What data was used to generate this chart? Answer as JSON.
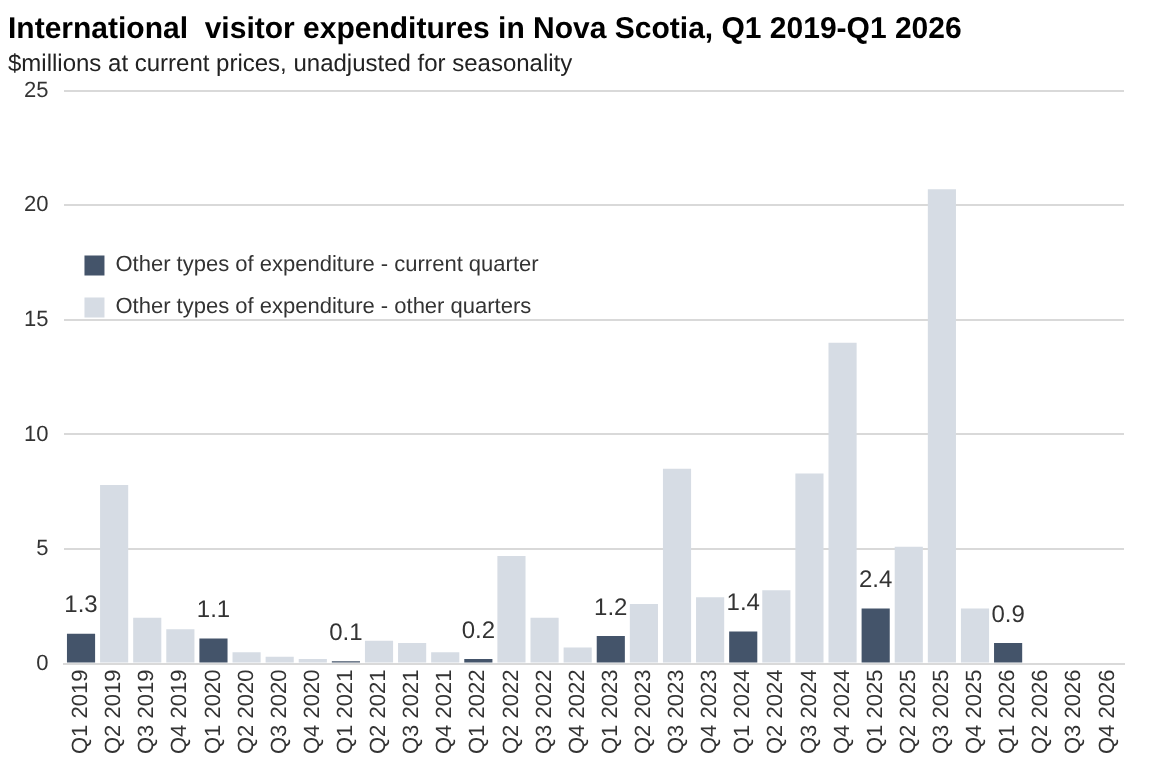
{
  "chart_data": {
    "type": "bar",
    "title": "International  visitor expenditures in Nova Scotia, Q1 2019-Q1 2026",
    "subtitle": "$millions at current prices, unadjusted for seasonality",
    "categories": [
      "Q1 2019",
      "Q2 2019",
      "Q3 2019",
      "Q4 2019",
      "Q1 2020",
      "Q2 2020",
      "Q3 2020",
      "Q4 2020",
      "Q1 2021",
      "Q2 2021",
      "Q3 2021",
      "Q4 2021",
      "Q1 2022",
      "Q2 2022",
      "Q3 2022",
      "Q4 2022",
      "Q1 2023",
      "Q2 2023",
      "Q3 2023",
      "Q4 2023",
      "Q1 2024",
      "Q2 2024",
      "Q3 2024",
      "Q4 2024",
      "Q1 2025",
      "Q2 2025",
      "Q3 2025",
      "Q4 2025",
      "Q1 2026",
      "Q2 2026",
      "Q3 2026",
      "Q4 2026"
    ],
    "stacked": true,
    "series": [
      {
        "name": "Other types of expenditure - current quarter",
        "color": "#44546a",
        "values": [
          1.3,
          null,
          null,
          null,
          1.1,
          null,
          null,
          null,
          0.1,
          null,
          null,
          null,
          0.2,
          null,
          null,
          null,
          1.2,
          null,
          null,
          null,
          1.4,
          null,
          null,
          null,
          2.4,
          null,
          null,
          null,
          0.9,
          null,
          null,
          null
        ],
        "value_labels": [
          "1.3",
          null,
          null,
          null,
          "1.1",
          null,
          null,
          null,
          "0.1",
          null,
          null,
          null,
          "0.2",
          null,
          null,
          null,
          "1.2",
          null,
          null,
          null,
          "1.4",
          null,
          null,
          null,
          "2.4",
          null,
          null,
          null,
          "0.9",
          null,
          null,
          null
        ]
      },
      {
        "name": "Other types of expenditure - other quarters",
        "color": "#d6dce4",
        "values": [
          null,
          7.8,
          2.0,
          1.5,
          null,
          0.5,
          0.3,
          0.2,
          null,
          1.0,
          0.9,
          0.5,
          null,
          4.7,
          2.0,
          0.7,
          null,
          2.6,
          8.5,
          2.9,
          null,
          3.2,
          8.3,
          14.0,
          null,
          5.1,
          20.7,
          2.4,
          null,
          null,
          null,
          null
        ]
      }
    ],
    "ylim": [
      0,
      25
    ],
    "yticks": [
      0,
      5,
      10,
      15,
      20,
      25
    ],
    "grid": "y",
    "legend": "top"
  }
}
